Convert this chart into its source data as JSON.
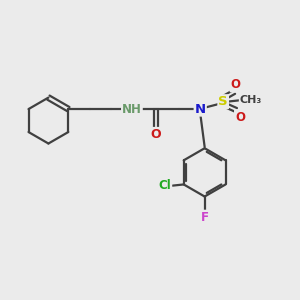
{
  "bg_color": "#ebebeb",
  "bond_color": "#404040",
  "bond_width": 1.6,
  "atom_colors": {
    "C": "#404040",
    "H_green": "#6a9a6a",
    "N_blue": "#1a1acc",
    "N_red": "#cc1a1a",
    "O": "#cc1a1a",
    "S": "#cccc00",
    "Cl": "#22aa22",
    "F": "#cc44cc"
  },
  "font_size_atom": 9.5,
  "font_size_small": 8.0,
  "fig_width": 3.0,
  "fig_height": 3.0,
  "dpi": 100,
  "xlim": [
    0,
    10
  ],
  "ylim": [
    0,
    10
  ]
}
